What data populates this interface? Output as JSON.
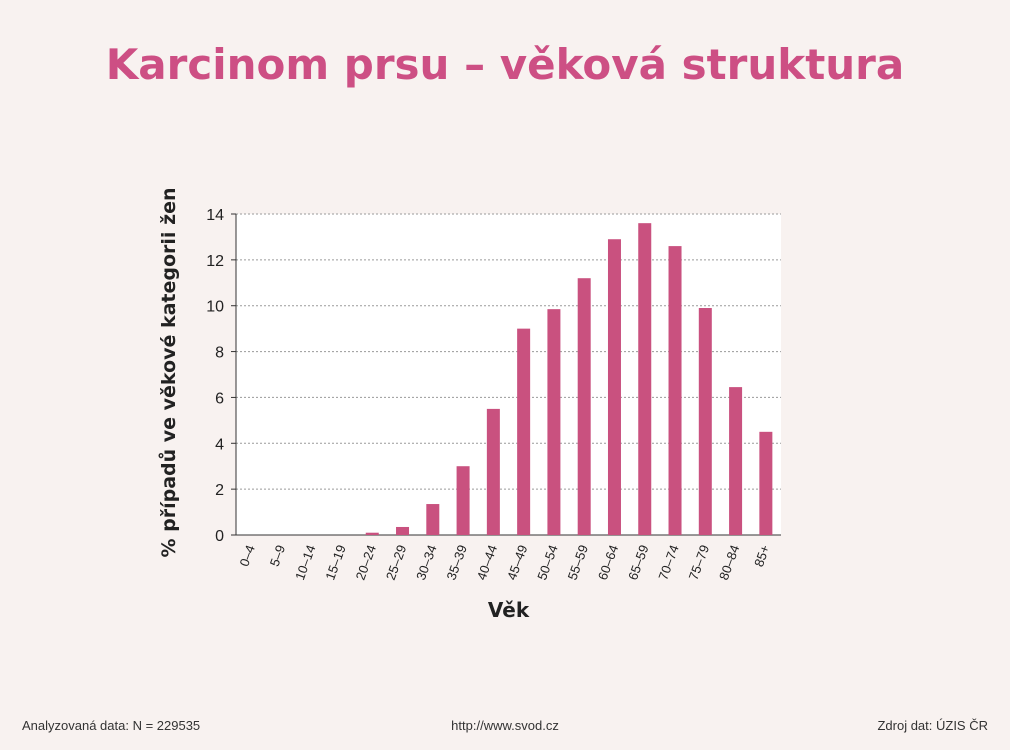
{
  "title": "Karcinom prsu – věková struktura",
  "colors": {
    "bar": "#c9517f",
    "title": "#cd4f84",
    "background": "#f8f2f0",
    "plot_background": "#ffffff"
  },
  "chart_data": {
    "type": "bar",
    "categories": [
      "0–4",
      "5–9",
      "10–14",
      "15–19",
      "20–24",
      "25–29",
      "30–34",
      "35–39",
      "40–44",
      "45–49",
      "50–54",
      "55–59",
      "60–64",
      "65–59",
      "70–74",
      "75–79",
      "80–84",
      "85+"
    ],
    "values": [
      0,
      0,
      0,
      0,
      0.1,
      0.35,
      1.35,
      3.0,
      5.5,
      9.0,
      9.85,
      11.2,
      12.9,
      13.6,
      12.6,
      9.9,
      6.45,
      4.5
    ],
    "title": "Karcinom prsu – věková struktura",
    "xlabel": "Věk",
    "ylabel": "% případů ve věkové kategorii žen",
    "ylim": [
      0,
      14
    ],
    "yticks": [
      0,
      2,
      4,
      6,
      8,
      10,
      12,
      14
    ],
    "grid": true,
    "legend": "none"
  },
  "footer": {
    "left": "Analyzovaná data: N = 229535",
    "center": "http://www.svod.cz",
    "right": "Zdroj dat: ÚZIS ČR"
  }
}
